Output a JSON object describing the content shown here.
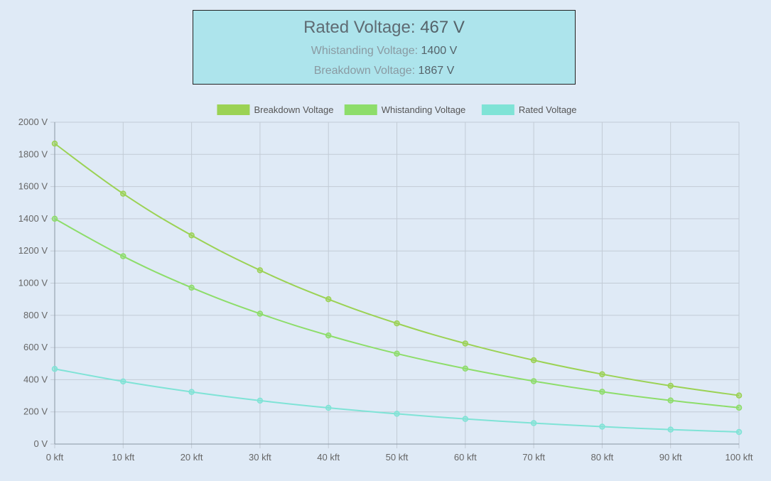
{
  "info": {
    "rated_label": "Rated Voltage:",
    "rated_value": "467 V",
    "withstanding_label": "Whistanding Voltage:",
    "withstanding_value": "1400 V",
    "breakdown_label": "Breakdown Voltage:",
    "breakdown_value": "1867 V"
  },
  "chart_data": {
    "type": "line",
    "categories": [
      "0 kft",
      "10 kft",
      "20 kft",
      "30 kft",
      "40 kft",
      "50 kft",
      "60 kft",
      "70 kft",
      "80 kft",
      "90 kft",
      "100 kft"
    ],
    "x": [
      0,
      10,
      20,
      30,
      40,
      50,
      60,
      70,
      80,
      90,
      100
    ],
    "ylim": [
      0,
      2000
    ],
    "yticks": [
      0,
      200,
      400,
      600,
      800,
      1000,
      1200,
      1400,
      1600,
      1800,
      2000
    ],
    "ytick_labels": [
      "0 V",
      "200 V",
      "400 V",
      "600 V",
      "800 V",
      "1000 V",
      "1200 V",
      "1400 V",
      "1600 V",
      "1800 V",
      "2000 V"
    ],
    "grid": true,
    "legend_position": "top",
    "series": [
      {
        "name": "Breakdown Voltage",
        "color": "#9bd254",
        "values": [
          1867,
          1556,
          1297,
          1080,
          900,
          750,
          625,
          521,
          434,
          362,
          302
        ]
      },
      {
        "name": "Whistanding Voltage",
        "color": "#8ddd6a",
        "values": [
          1400,
          1167,
          972,
          810,
          675,
          562,
          469,
          391,
          325,
          271,
          226
        ]
      },
      {
        "name": "Rated Voltage",
        "color": "#7fe3d6",
        "values": [
          467,
          389,
          324,
          270,
          225,
          188,
          156,
          130,
          108,
          90,
          75
        ]
      }
    ]
  }
}
